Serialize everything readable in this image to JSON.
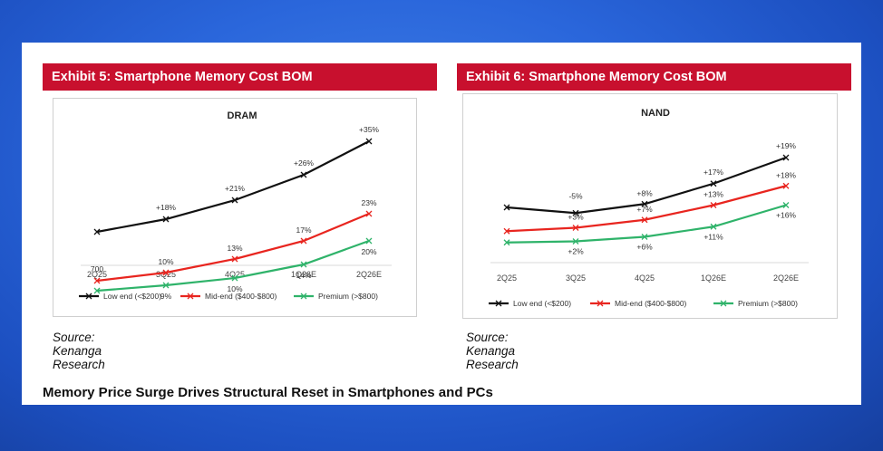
{
  "exhibits": [
    {
      "title": "Exhibit 5: Smartphone Memory Cost BOM",
      "source": "Source: Kenanga Research"
    },
    {
      "title": "Exhibit 6: Smartphone Memory Cost BOM",
      "source": "Source: Kenanga Research"
    }
  ],
  "footer_title": "Memory Price Surge Drives Structural Reset in Smartphones and PCs",
  "chart_data": [
    {
      "type": "line",
      "title": "DRAM",
      "categories": [
        "2Q25",
        "3Q25",
        "4Q25",
        "1Q26E",
        "2Q26E"
      ],
      "series": [
        {
          "name": "Low end (<$200)",
          "color": "#111111",
          "values": [
            0.0,
            0.14,
            0.35,
            0.63,
            1.0
          ]
        },
        {
          "name": "Mid-end ($400-$800)",
          "color": "#e8251f",
          "values": [
            -0.54,
            -0.45,
            -0.3,
            -0.1,
            0.2
          ]
        },
        {
          "name": "Premium (>$800)",
          "color": "#2fb36a",
          "values": [
            -0.65,
            -0.59,
            -0.51,
            -0.36,
            -0.1
          ]
        }
      ],
      "labels": [
        {
          "series": 0,
          "texts": [
            "",
            "+18%",
            "+21%",
            "+26%",
            "+35%"
          ]
        },
        {
          "series": 1,
          "texts": [
            "",
            "10%",
            "13%",
            "17%",
            "23%"
          ]
        },
        {
          "series": 2,
          "texts": [
            "700",
            "9%",
            "10%",
            "14%",
            "20%"
          ]
        }
      ],
      "grid": false,
      "legend": "bottom"
    },
    {
      "type": "line",
      "title": "NAND",
      "categories": [
        "2Q25",
        "3Q25",
        "4Q25",
        "1Q26E",
        "2Q26E"
      ],
      "series": [
        {
          "name": "Low end (<$200)",
          "color": "#111111",
          "values": [
            0.0,
            -0.05,
            0.03,
            0.21,
            0.44
          ]
        },
        {
          "name": "Mid-end ($400-$800)",
          "color": "#e8251f",
          "values": [
            -0.21,
            -0.18,
            -0.11,
            0.02,
            0.19
          ]
        },
        {
          "name": "Premium (>$800)",
          "color": "#2fb36a",
          "values": [
            -0.31,
            -0.3,
            -0.26,
            -0.17,
            0.02
          ]
        }
      ],
      "labels": [
        {
          "series": 0,
          "texts": [
            "",
            "-5%",
            "+8%",
            "+17%",
            "+19%"
          ]
        },
        {
          "series": 1,
          "texts": [
            "",
            "+3%",
            "+7%",
            "+13%",
            "+18%"
          ]
        },
        {
          "series": 2,
          "texts": [
            "",
            "+2%",
            "+6%",
            "+11%",
            "+16%"
          ]
        }
      ],
      "grid": false,
      "legend": "bottom"
    }
  ]
}
